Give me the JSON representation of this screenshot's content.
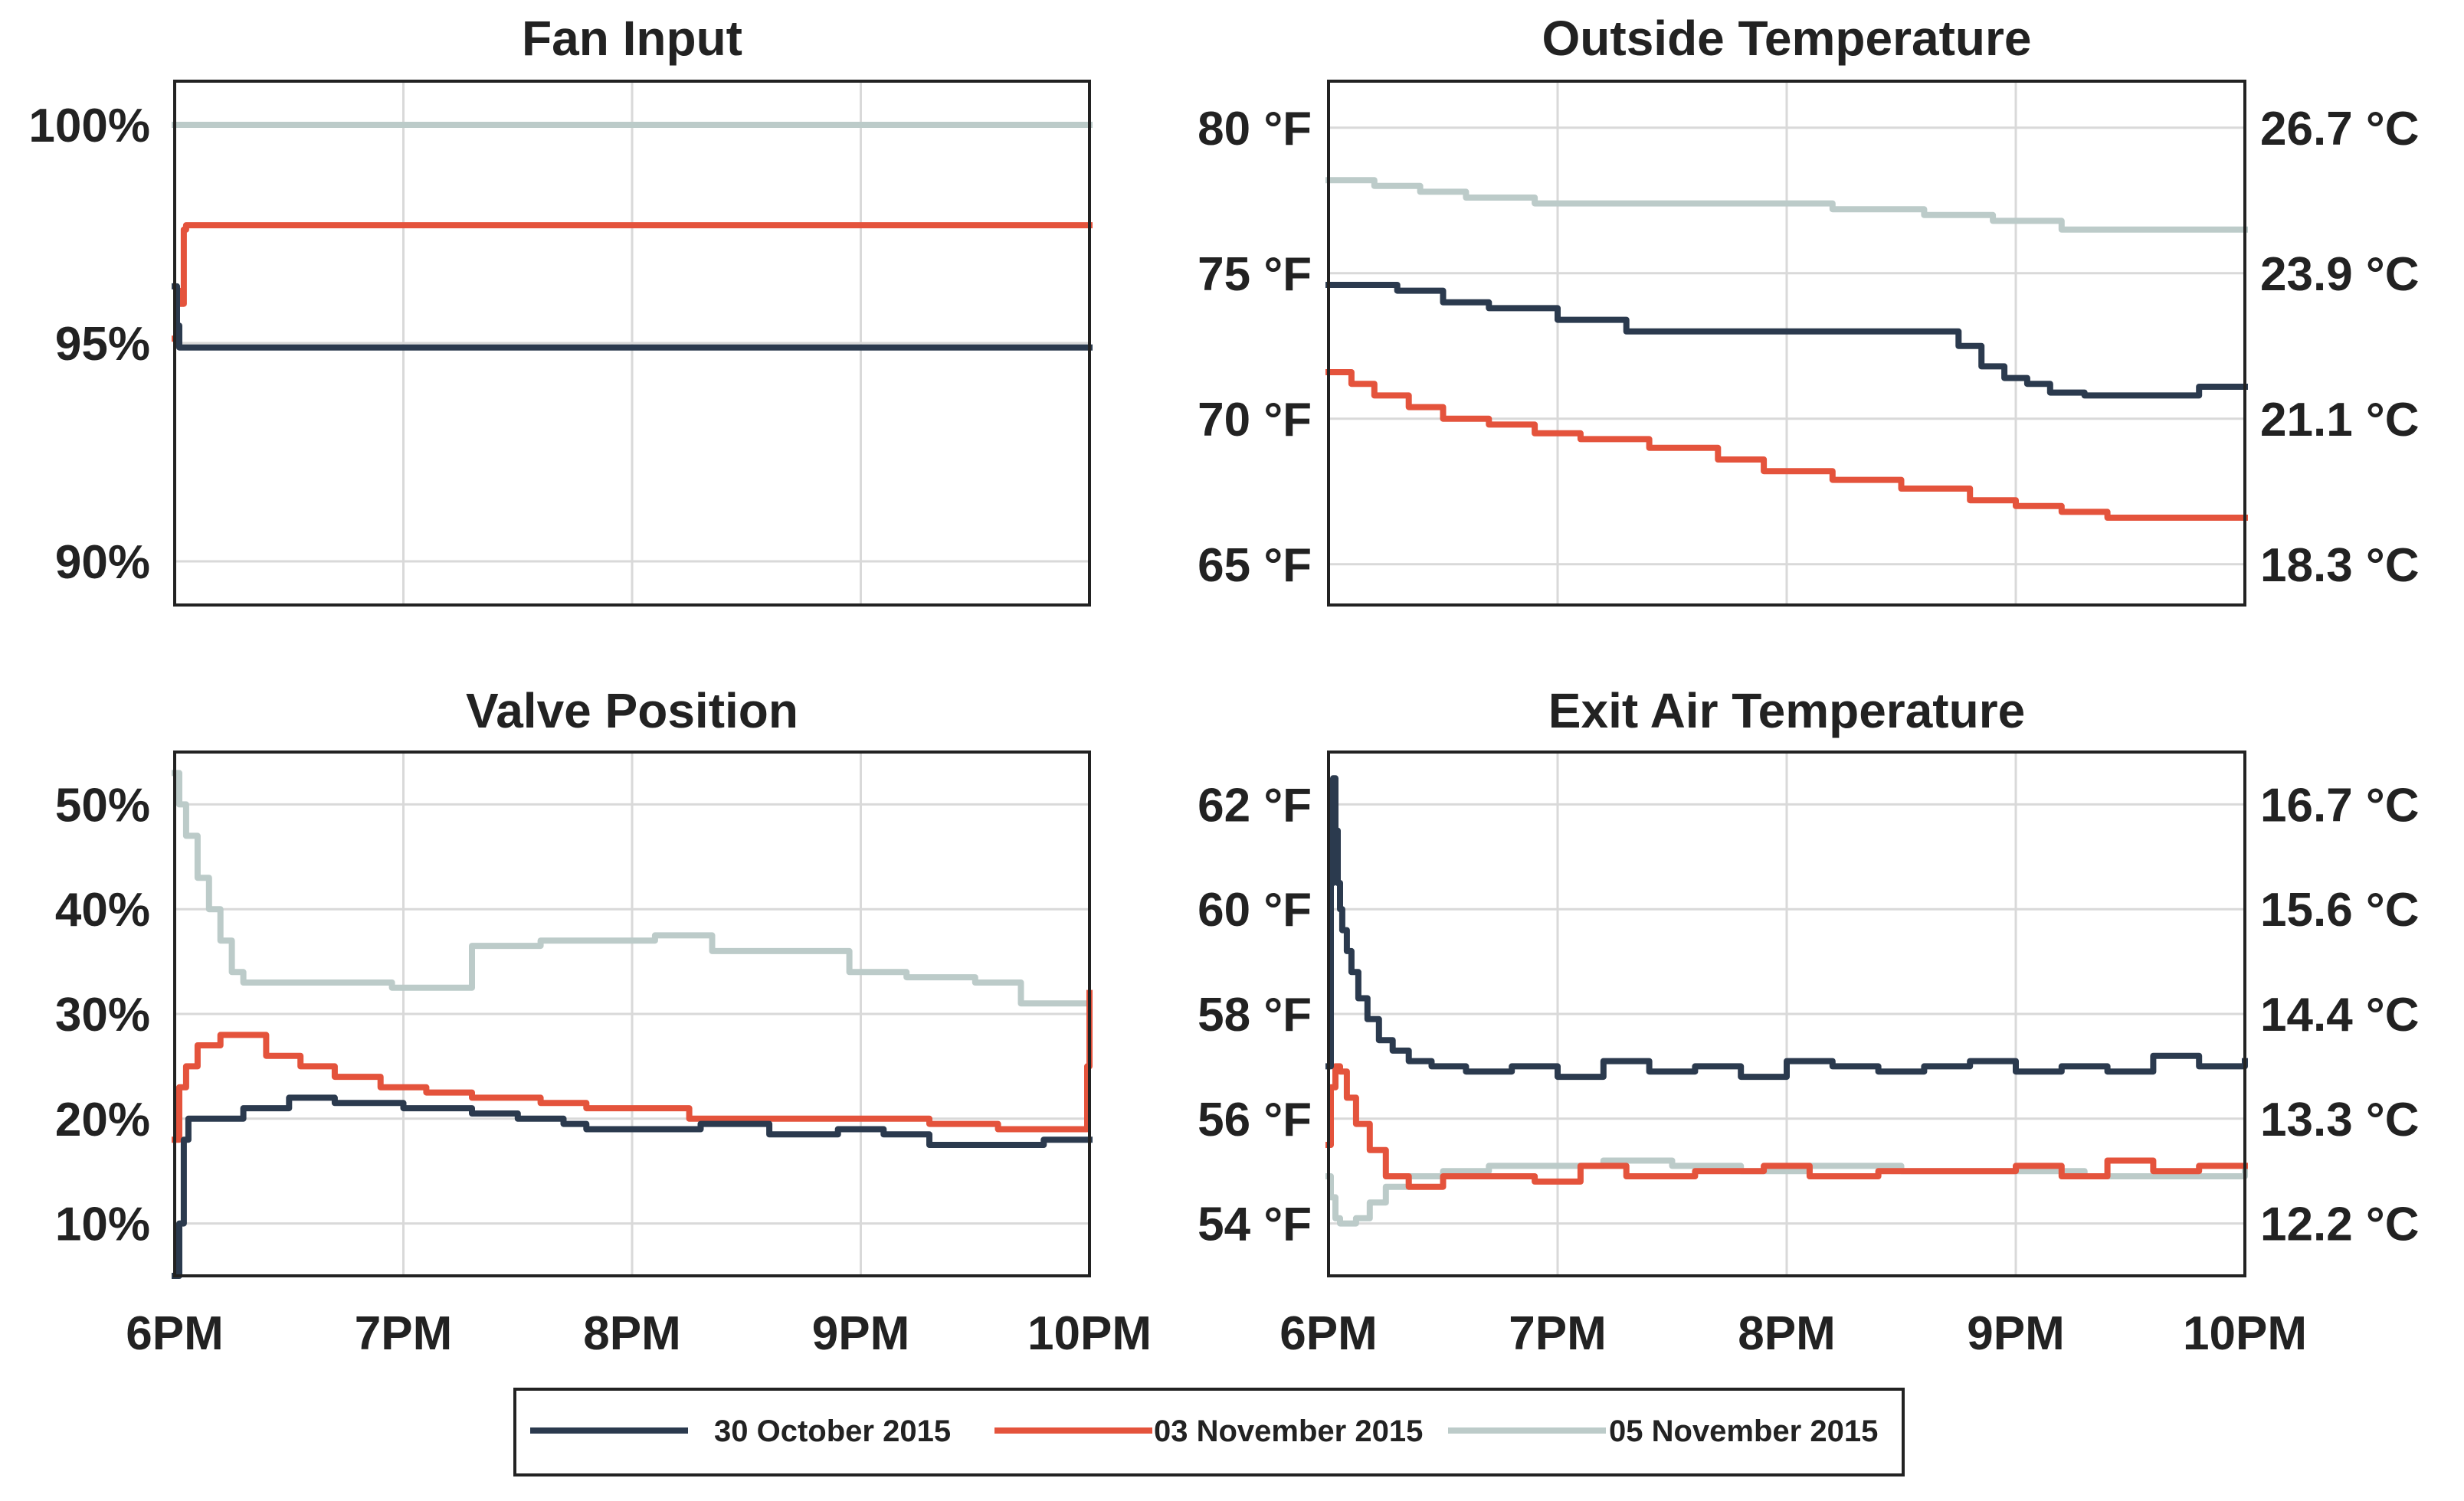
{
  "legend": [
    {
      "label": "30 October 2015",
      "color": "#2b3a4e"
    },
    {
      "label": "03 November 2015",
      "color": "#e4533c"
    },
    {
      "label": "05 November 2015",
      "color": "#bccbc9"
    }
  ],
  "chart_data": [
    {
      "id": "fan",
      "type": "line",
      "title": "Fan Input",
      "x_ticks": [
        "6PM",
        "7PM",
        "8PM",
        "9PM",
        "10PM"
      ],
      "xlim": [
        0,
        4
      ],
      "ylim": [
        89,
        101
      ],
      "y_ticks": [
        90,
        95,
        100
      ],
      "y_tick_labels": [
        "90%",
        "95%",
        "100%"
      ],
      "series": [
        {
          "name": "05 November 2015",
          "x": [
            0,
            4
          ],
          "y": [
            100,
            100
          ]
        },
        {
          "name": "03 November 2015",
          "x": [
            0,
            0.01,
            0.02,
            0.04,
            0.05,
            4
          ],
          "y": [
            95.1,
            96.2,
            95.9,
            97.6,
            97.7,
            97.7
          ]
        },
        {
          "name": "30 October 2015",
          "x": [
            0,
            0.01,
            0.02,
            4
          ],
          "y": [
            96.3,
            95.4,
            94.9,
            94.9
          ]
        }
      ]
    },
    {
      "id": "outside",
      "type": "line",
      "title": "Outside Temperature",
      "x_ticks": [
        "6PM",
        "7PM",
        "8PM",
        "9PM",
        "10PM"
      ],
      "xlim": [
        0,
        4
      ],
      "ylim": [
        63.6,
        81.6
      ],
      "y_ticks": [
        65,
        70,
        75,
        80
      ],
      "y_tick_labels": [
        "65 °F",
        "70 °F",
        "75 °F",
        "80 °F"
      ],
      "y2_tick_labels": [
        "18.3 °C",
        "21.1 °C",
        "23.9 °C",
        "26.7 °C"
      ],
      "series": [
        {
          "name": "05 November 2015",
          "x": [
            0,
            0.2,
            0.4,
            0.6,
            0.9,
            1.3,
            1.7,
            2.2,
            2.6,
            2.9,
            3.2,
            3.6,
            4
          ],
          "y": [
            78.2,
            78.0,
            77.8,
            77.6,
            77.4,
            77.4,
            77.4,
            77.2,
            77.0,
            76.8,
            76.5,
            76.5,
            76.5
          ]
        },
        {
          "name": "30 October 2015",
          "x": [
            0,
            0.3,
            0.5,
            0.7,
            1.0,
            1.3,
            1.8,
            2.3,
            2.6,
            2.75,
            2.85,
            2.95,
            3.05,
            3.15,
            3.3,
            3.5,
            3.8,
            4
          ],
          "y": [
            74.6,
            74.4,
            74.0,
            73.8,
            73.4,
            73.0,
            73.0,
            73.0,
            73.0,
            72.5,
            71.8,
            71.4,
            71.2,
            70.9,
            70.8,
            70.8,
            71.1,
            71.1
          ]
        },
        {
          "name": "03 November 2015",
          "x": [
            0,
            0.1,
            0.2,
            0.35,
            0.5,
            0.7,
            0.9,
            1.1,
            1.4,
            1.7,
            1.9,
            2.2,
            2.5,
            2.8,
            3.0,
            3.2,
            3.4,
            3.6,
            4
          ],
          "y": [
            71.6,
            71.2,
            70.8,
            70.4,
            70.0,
            69.8,
            69.5,
            69.3,
            69.0,
            68.6,
            68.2,
            67.9,
            67.6,
            67.2,
            67.0,
            66.8,
            66.6,
            66.6,
            66.6
          ]
        }
      ]
    },
    {
      "id": "valve",
      "type": "line",
      "title": "Valve Position",
      "x_ticks": [
        "6PM",
        "7PM",
        "8PM",
        "9PM",
        "10PM"
      ],
      "xlim": [
        0,
        4
      ],
      "ylim": [
        5,
        55
      ],
      "y_ticks": [
        10,
        20,
        30,
        40,
        50
      ],
      "y_tick_labels": [
        "10%",
        "20%",
        "30%",
        "40%",
        "50%"
      ],
      "series": [
        {
          "name": "05 November 2015",
          "x": [
            0,
            0.02,
            0.05,
            0.1,
            0.15,
            0.2,
            0.25,
            0.3,
            0.5,
            0.8,
            0.95,
            1.05,
            1.3,
            1.6,
            1.9,
            2.1,
            2.35,
            2.6,
            2.95,
            3.2,
            3.5,
            3.7,
            4
          ],
          "y": [
            53,
            50,
            47,
            43,
            40,
            37,
            34,
            33,
            33,
            33,
            32.5,
            32.5,
            36.5,
            37,
            37,
            37.5,
            36,
            36,
            34,
            33.5,
            33,
            31,
            31
          ]
        },
        {
          "name": "03 November 2015",
          "x": [
            0,
            0.02,
            0.05,
            0.1,
            0.2,
            0.3,
            0.4,
            0.55,
            0.7,
            0.9,
            1.1,
            1.3,
            1.6,
            1.8,
            2.1,
            2.25,
            2.5,
            2.8,
            3.0,
            3.3,
            3.6,
            3.9,
            3.97,
            3.99,
            4
          ],
          "y": [
            18,
            23,
            25,
            27,
            28,
            28,
            26,
            25,
            24,
            23,
            22.5,
            22,
            21.5,
            21,
            21,
            20,
            20,
            20,
            20,
            19.5,
            19,
            19,
            19,
            25,
            32
          ]
        },
        {
          "name": "30 October 2015",
          "x": [
            0,
            0.02,
            0.04,
            0.06,
            0.1,
            0.3,
            0.5,
            0.7,
            1.0,
            1.3,
            1.5,
            1.7,
            1.8,
            2.0,
            2.3,
            2.6,
            2.9,
            3.1,
            3.3,
            3.6,
            3.8,
            4
          ],
          "y": [
            5,
            10,
            18,
            20,
            20,
            21,
            22,
            21.5,
            21,
            20.5,
            20,
            19.5,
            19,
            19,
            19.5,
            18.5,
            19,
            18.5,
            17.5,
            17.5,
            18,
            18
          ]
        }
      ]
    },
    {
      "id": "exit",
      "type": "line",
      "title": "Exit Air Temperature",
      "x_ticks": [
        "6PM",
        "7PM",
        "8PM",
        "9PM",
        "10PM"
      ],
      "xlim": [
        0,
        4
      ],
      "ylim": [
        53,
        63
      ],
      "y_ticks": [
        54,
        56,
        58,
        60,
        62
      ],
      "y_tick_labels": [
        "54 °F",
        "56 °F",
        "58 °F",
        "60 °F",
        "62 °F"
      ],
      "y2_tick_labels": [
        "12.2 °C",
        "13.3 °C",
        "14.4 °C",
        "15.6 °C",
        "16.7 °C"
      ],
      "series": [
        {
          "name": "05 November 2015",
          "x": [
            0,
            0.01,
            0.03,
            0.05,
            0.08,
            0.12,
            0.18,
            0.25,
            0.35,
            0.5,
            0.7,
            0.9,
            1.2,
            1.5,
            1.8,
            2.1,
            2.5,
            2.9,
            3.3,
            3.6,
            4
          ],
          "y": [
            54.9,
            54.5,
            54.1,
            54.0,
            54.0,
            54.1,
            54.4,
            54.7,
            54.9,
            55.0,
            55.1,
            55.1,
            55.2,
            55.1,
            55.0,
            55.1,
            55.0,
            55.0,
            54.9,
            54.9,
            55.0
          ]
        },
        {
          "name": "03 November 2015",
          "x": [
            0,
            0.01,
            0.03,
            0.05,
            0.08,
            0.12,
            0.18,
            0.25,
            0.35,
            0.5,
            0.7,
            0.9,
            1.1,
            1.3,
            1.6,
            1.9,
            2.1,
            2.4,
            2.7,
            3.0,
            3.2,
            3.4,
            3.6,
            3.8,
            4
          ],
          "y": [
            55.5,
            56.6,
            57.0,
            56.9,
            56.4,
            55.9,
            55.4,
            54.9,
            54.7,
            54.9,
            54.9,
            54.8,
            55.1,
            54.9,
            55.0,
            55.1,
            54.9,
            55.0,
            55.0,
            55.1,
            54.9,
            55.2,
            55.0,
            55.1,
            55.1
          ]
        },
        {
          "name": "30 October 2015",
          "x": [
            0,
            0.01,
            0.02,
            0.03,
            0.04,
            0.05,
            0.06,
            0.08,
            0.1,
            0.13,
            0.17,
            0.22,
            0.28,
            0.35,
            0.45,
            0.6,
            0.8,
            1.0,
            1.2,
            1.4,
            1.6,
            1.8,
            2.0,
            2.2,
            2.4,
            2.6,
            2.8,
            3.0,
            3.2,
            3.4,
            3.6,
            3.8,
            4
          ],
          "y": [
            57.0,
            60.5,
            62.5,
            61.5,
            60.5,
            60.0,
            59.6,
            59.2,
            58.8,
            58.3,
            57.9,
            57.5,
            57.3,
            57.1,
            57.0,
            56.9,
            57.0,
            56.8,
            57.1,
            56.9,
            57.0,
            56.8,
            57.1,
            57.0,
            56.9,
            57.0,
            57.1,
            56.9,
            57.0,
            56.9,
            57.2,
            57.0,
            57.1
          ]
        }
      ]
    }
  ]
}
